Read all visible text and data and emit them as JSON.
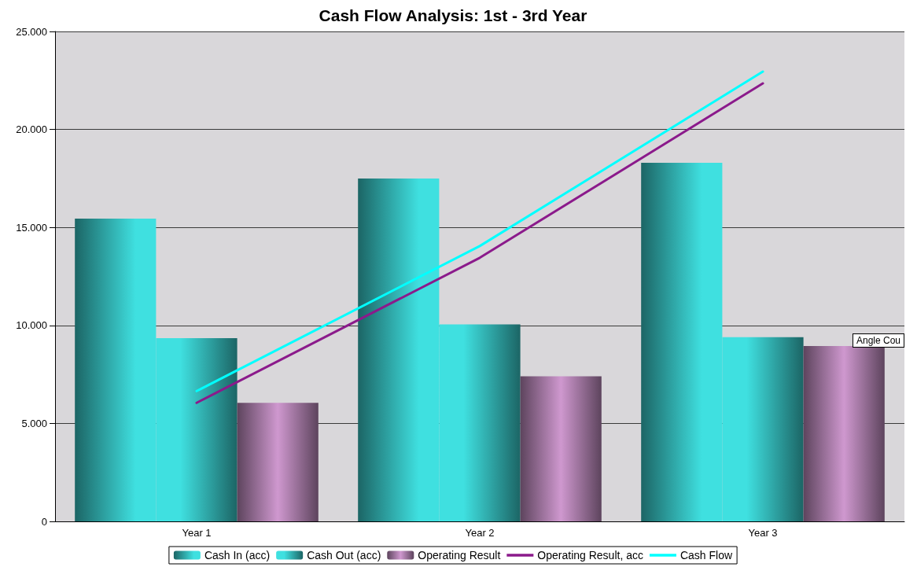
{
  "chart_data": {
    "type": "bar",
    "title": "Cash Flow Analysis: 1st - 3rd Year",
    "categories": [
      "Year 1",
      "Year 2",
      "Year 3"
    ],
    "series": [
      {
        "name": "Cash In (acc)",
        "color": "#3fe0e0",
        "values": [
          15450,
          17500,
          18300
        ]
      },
      {
        "name": "Cash Out (acc)",
        "color": "#3fe0e0",
        "values": [
          9350,
          10050,
          9400
        ]
      },
      {
        "name": "Operating Result",
        "color": "#cf98cf",
        "values": [
          6050,
          7400,
          8950
        ]
      },
      {
        "name": "Operating Result, acc",
        "type": "line",
        "color": "#8b1a8b",
        "values": [
          6050,
          13450,
          22350
        ]
      },
      {
        "name": "Cash Flow",
        "type": "line",
        "color": "#00ffff",
        "values": [
          6650,
          14050,
          22950
        ]
      }
    ],
    "ylim": [
      0,
      25000
    ],
    "yticks": [
      0,
      {
        "value": 5000,
        "label": "5.000"
      },
      {
        "value": 10000,
        "label": "10.000"
      },
      {
        "value": 15000,
        "label": "15.000"
      },
      {
        "value": 20000,
        "label": "20.000"
      },
      {
        "value": 25000,
        "label": "25.000"
      }
    ],
    "grid": "y",
    "legend": "bottom",
    "marker": "none",
    "annotations": [
      "Angle Cou"
    ]
  }
}
